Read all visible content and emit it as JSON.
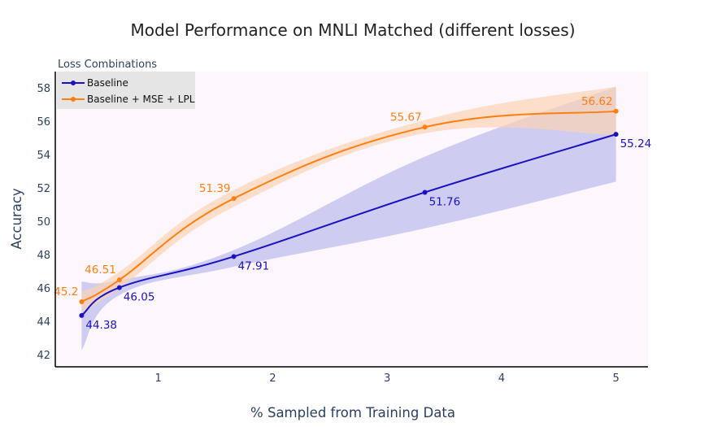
{
  "chart_data": {
    "type": "line",
    "title": "Model Performance on MNLI Matched (different losses)",
    "xlabel": "% Sampled from Training Data",
    "ylabel": "Accuracy",
    "xlim": [
      0.1,
      5.28
    ],
    "ylim": [
      41.3,
      59.0
    ],
    "xticks": [
      1,
      2,
      3,
      4,
      5
    ],
    "yticks": [
      42,
      44,
      46,
      48,
      50,
      52,
      54,
      56,
      58
    ],
    "legend_title": "Loss Combinations",
    "legend_position": "top-left",
    "background": "#fdf7fd",
    "series": [
      {
        "name": "Baseline",
        "color": "#1a12c0",
        "band_color": "#c6c5ef",
        "x": [
          0.33,
          0.66,
          1.66,
          3.33,
          5.0
        ],
        "y": [
          44.38,
          46.05,
          47.91,
          51.76,
          55.24
        ],
        "labels": [
          "44.38",
          "46.05",
          "47.91",
          "51.76",
          "55.24"
        ],
        "lower": [
          42.3,
          45.6,
          47.3,
          49.6,
          52.4
        ],
        "upper": [
          46.4,
          46.5,
          48.3,
          53.9,
          58.1
        ]
      },
      {
        "name": "Baseline + MSE + LPL",
        "color": "#ff7f0e",
        "band_color": "#fbd3b3",
        "x": [
          0.33,
          0.66,
          1.66,
          3.33,
          5.0
        ],
        "y": [
          45.2,
          46.51,
          51.39,
          55.67,
          56.62
        ],
        "labels": [
          "45.2",
          "46.51",
          "51.39",
          "55.67",
          "56.62"
        ],
        "lower": [
          44.6,
          46.0,
          50.9,
          55.3,
          55.2
        ],
        "upper": [
          45.8,
          47.0,
          51.9,
          56.1,
          58.1
        ]
      }
    ]
  }
}
